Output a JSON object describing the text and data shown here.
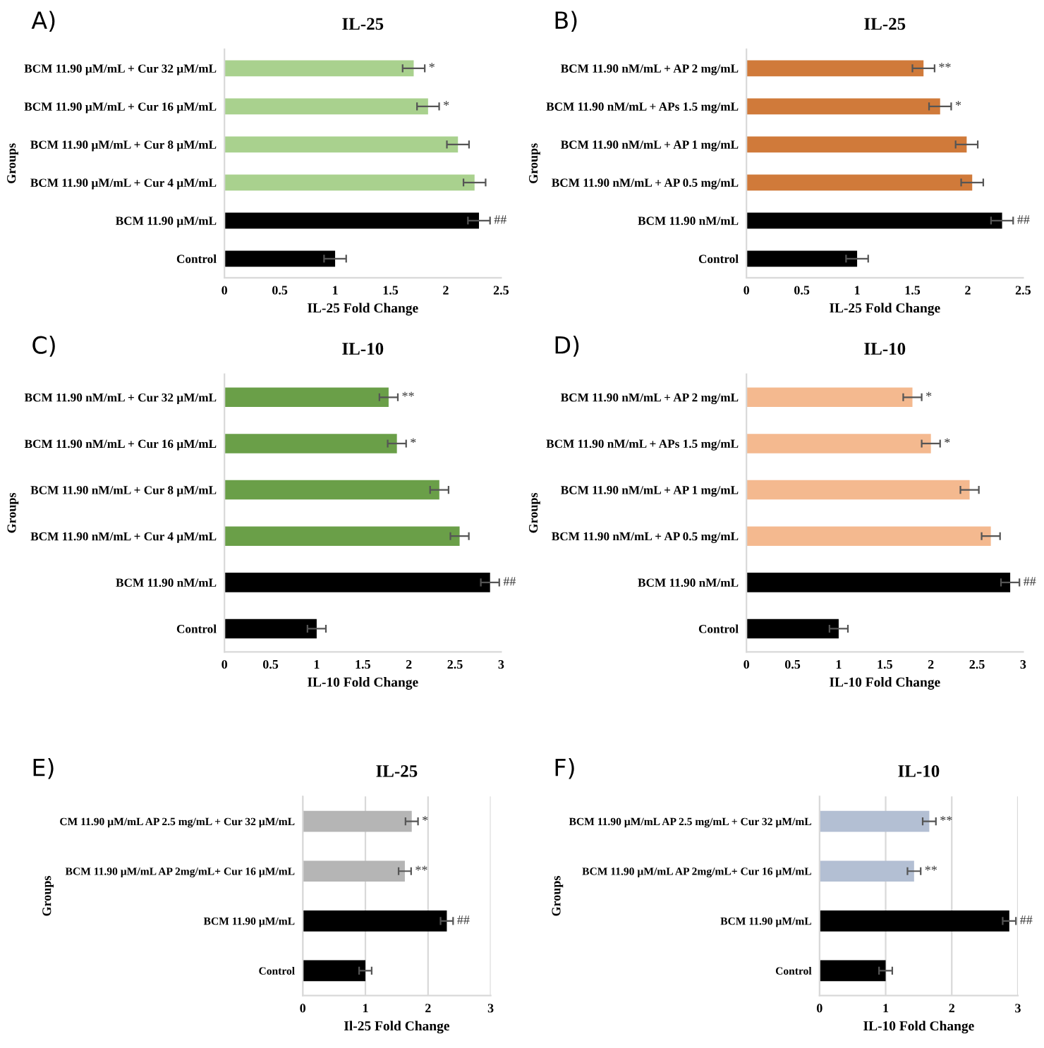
{
  "chart_data": [
    {
      "type": "bar",
      "orientation": "horizontal",
      "title": "IL-25",
      "xlabel": "IL-25 Fold Change",
      "ylabel": "Groups",
      "categories": [
        "BCM 11.90 µM/mL + Cur 32 µM/mL",
        "BCM 11.90 µM/mL + Cur 16 µM/mL",
        "BCM 11.90 µM/mL + Cur 8 µM/mL",
        "BCM 11.90 µM/mL + Cur 4 µM/mL",
        "BCM 11.90 µM/mL",
        "Control"
      ],
      "values": [
        1.71,
        1.84,
        2.11,
        2.26,
        2.3,
        1.0
      ],
      "errors": [
        0.1,
        0.1,
        0.1,
        0.1,
        0.1,
        0.1
      ],
      "value_labels": [
        "*",
        "*",
        null,
        null,
        "##",
        null
      ],
      "colors": [
        "#a9d18e",
        "#a9d18e",
        "#a9d18e",
        "#a9d18e",
        "#000000",
        "#000000"
      ],
      "xlim": [
        0,
        2.5
      ],
      "xticks": [
        0,
        0.5,
        1,
        1.5,
        2,
        2.5
      ],
      "annotations": [
        "A)"
      ]
    },
    {
      "type": "bar",
      "orientation": "horizontal",
      "title": "IL-25",
      "xlabel": "IL-25 Fold Change",
      "ylabel": "Groups",
      "categories": [
        "BCM 11.90 nM/mL + AP 2 mg/mL",
        "BCM 11.90 nM/mL + APs 1.5 mg/mL",
        "BCM 11.90 nM/mL + AP 1 mg/mL",
        "BCM 11.90 nM/mL + AP 0.5 mg/mL",
        "BCM 11.90 nM/mL",
        "Control"
      ],
      "values": [
        1.6,
        1.75,
        1.99,
        2.04,
        2.31,
        1.0
      ],
      "errors": [
        0.1,
        0.1,
        0.1,
        0.1,
        0.1,
        0.1
      ],
      "value_labels": [
        "**",
        "*",
        null,
        null,
        "##",
        null
      ],
      "colors": [
        "#d07a3a",
        "#d07a3a",
        "#d07a3a",
        "#d07a3a",
        "#000000",
        "#000000"
      ],
      "xlim": [
        0,
        2.5
      ],
      "xticks": [
        0,
        0.5,
        1,
        1.5,
        2,
        2.5
      ],
      "annotations": [
        "B)"
      ]
    },
    {
      "type": "bar",
      "orientation": "horizontal",
      "title": "IL-10",
      "xlabel": "IL-10 Fold Change",
      "ylabel": "Groups",
      "categories": [
        "BCM 11.90 nM/mL + Cur 32 µM/mL",
        "BCM 11.90 nM/mL + Cur 16 µM/mL",
        "BCM 11.90 nM/mL + Cur 8 µM/mL",
        "BCM 11.90 nM/mL + Cur 4 µM/mL",
        "BCM 11.90 nM/mL",
        "Control"
      ],
      "values": [
        1.78,
        1.87,
        2.33,
        2.55,
        2.88,
        1.0
      ],
      "errors": [
        0.1,
        0.1,
        0.1,
        0.1,
        0.1,
        0.1
      ],
      "value_labels": [
        "**",
        "*",
        null,
        null,
        "##",
        null
      ],
      "colors": [
        "#6a9f48",
        "#6a9f48",
        "#6a9f48",
        "#6a9f48",
        "#000000",
        "#000000"
      ],
      "xlim": [
        0,
        3
      ],
      "xticks": [
        0,
        0.5,
        1,
        1.5,
        2,
        2.5,
        3
      ],
      "annotations": [
        "C)"
      ]
    },
    {
      "type": "bar",
      "orientation": "horizontal",
      "title": "IL-10",
      "xlabel": "IL-10 Fold Change",
      "ylabel": "Groups",
      "categories": [
        "BCM 11.90 nM/mL + AP 2 mg/mL",
        "BCM 11.90 nM/mL + APs 1.5 mg/mL",
        "BCM 11.90 nM/mL + AP 1 mg/mL",
        "BCM 11.90 nM/mL + AP 0.5 mg/mL",
        "BCM 11.90 nM/mL",
        "Control"
      ],
      "values": [
        1.8,
        2.0,
        2.42,
        2.65,
        2.86,
        1.0
      ],
      "errors": [
        0.1,
        0.1,
        0.1,
        0.1,
        0.1,
        0.1
      ],
      "value_labels": [
        "*",
        "*",
        null,
        null,
        "##",
        null
      ],
      "colors": [
        "#f4b98f",
        "#f4b98f",
        "#f4b98f",
        "#f4b98f",
        "#000000",
        "#000000"
      ],
      "xlim": [
        0,
        3
      ],
      "xticks": [
        0,
        0.5,
        1,
        1.5,
        2,
        2.5,
        3
      ],
      "annotations": [
        "D)"
      ]
    },
    {
      "type": "bar",
      "orientation": "horizontal",
      "title": "IL-25",
      "xlabel": "Il-25 Fold Change",
      "ylabel": "Groups",
      "categories": [
        "CM 11.90 µM/mL AP 2.5 mg/mL + Cur 32 µM/mL",
        "BCM 11.90 µM/mL AP 2mg/mL+ Cur 16 µM/mL",
        "BCM 11.90 µM/mL",
        "Control"
      ],
      "values": [
        1.74,
        1.63,
        2.3,
        1.0
      ],
      "errors": [
        0.1,
        0.1,
        0.1,
        0.1
      ],
      "value_labels": [
        "*",
        "**",
        "##",
        null
      ],
      "colors": [
        "#b5b5b5",
        "#b5b5b5",
        "#000000",
        "#000000"
      ],
      "xlim": [
        0,
        3
      ],
      "xticks": [
        0,
        1,
        2,
        3
      ],
      "grid": "x",
      "annotations": [
        "E)"
      ]
    },
    {
      "type": "bar",
      "orientation": "horizontal",
      "title": "IL-10",
      "xlabel": "IL-10 Fold Change",
      "ylabel": "Groups",
      "categories": [
        "BCM 11.90 µM/mL AP 2.5 mg/mL + Cur 32 µM/mL",
        "BCM 11.90 µM/mL AP 2mg/mL+ Cur 16 µM/mL",
        "BCM 11.90 µM/mL",
        "Control"
      ],
      "values": [
        1.66,
        1.43,
        2.87,
        1.0
      ],
      "errors": [
        0.1,
        0.1,
        0.1,
        0.1
      ],
      "value_labels": [
        "**",
        "**",
        "##",
        null
      ],
      "colors": [
        "#b3bfd3",
        "#b3bfd3",
        "#000000",
        "#000000"
      ],
      "xlim": [
        0,
        3
      ],
      "xticks": [
        0,
        1,
        2,
        3
      ],
      "grid": "x",
      "annotations": [
        "F)"
      ]
    }
  ]
}
